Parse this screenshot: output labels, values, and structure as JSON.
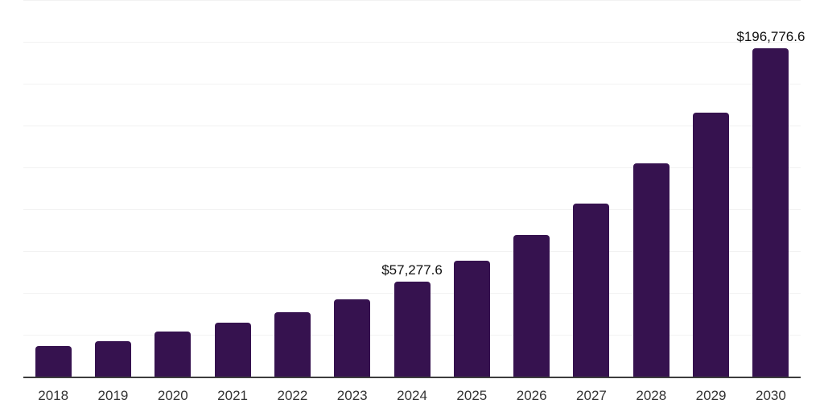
{
  "chart_data": {
    "type": "bar",
    "title": "",
    "xlabel": "",
    "ylabel": "",
    "categories": [
      "2018",
      "2019",
      "2020",
      "2021",
      "2022",
      "2023",
      "2024",
      "2025",
      "2026",
      "2027",
      "2028",
      "2029",
      "2030"
    ],
    "values": [
      18800,
      21600,
      27300,
      32700,
      38900,
      46800,
      57277.6,
      69500,
      85100,
      103800,
      127900,
      158300,
      196776.6
    ],
    "data_labels": [
      {
        "category": "2024",
        "text": "$57,277.6"
      },
      {
        "category": "2030",
        "text": "$196,776.6"
      }
    ],
    "ylim": [
      0,
      225000
    ],
    "gridline_step": 25000,
    "grid": "horizontal",
    "legend": "none",
    "y_axis_labels_visible": false
  },
  "colors": {
    "bar": "#36124F",
    "axis_line": "#3D3D3D",
    "gridline": "#F2F2F2",
    "data_label": "#111111",
    "tick_label": "#333333",
    "background": "#FFFFFF"
  }
}
